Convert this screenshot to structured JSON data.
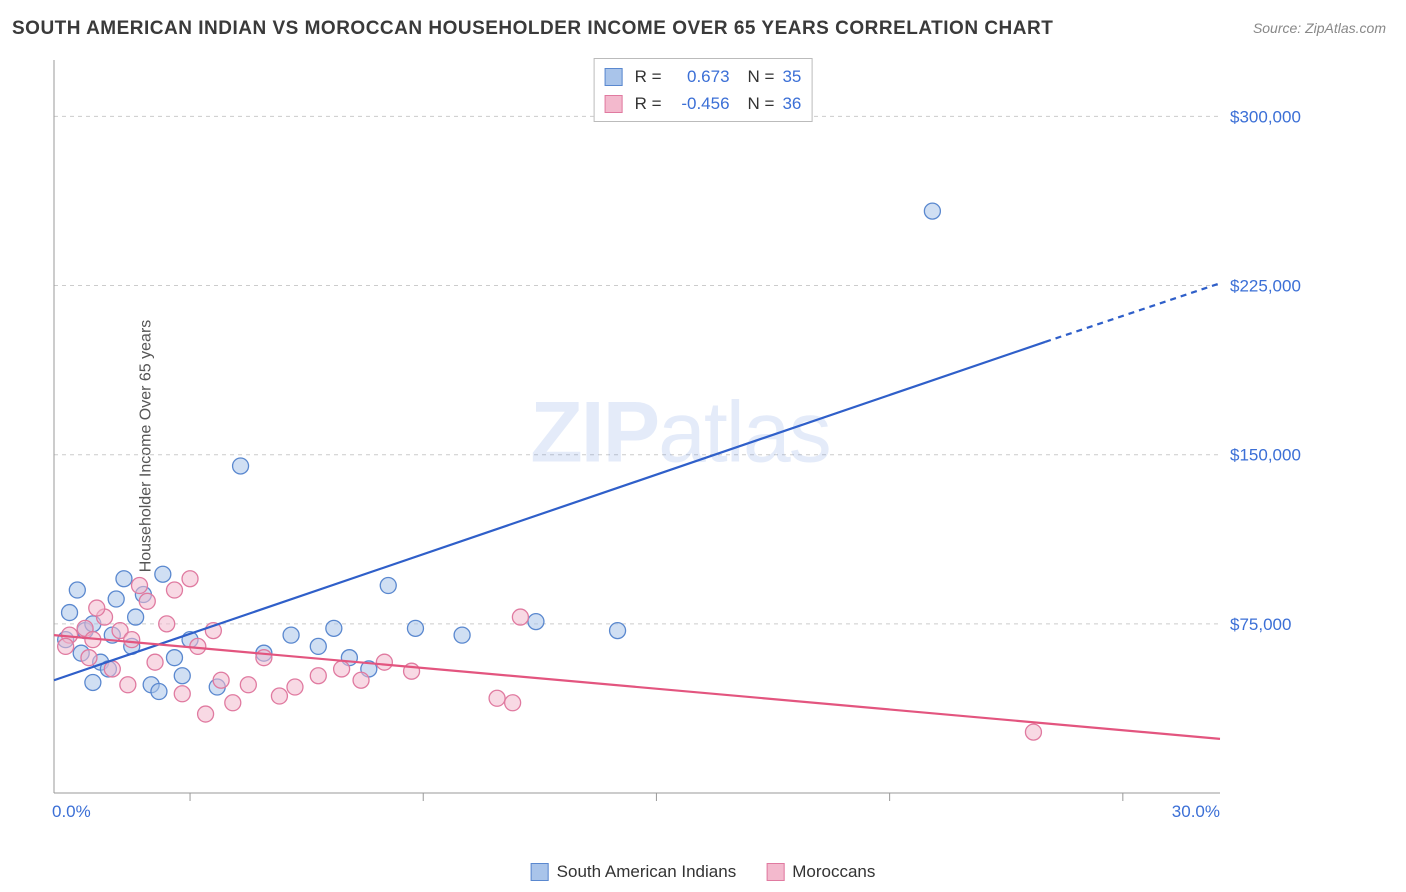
{
  "title": "SOUTH AMERICAN INDIAN VS MOROCCAN HOUSEHOLDER INCOME OVER 65 YEARS CORRELATION CHART",
  "source_label": "Source: ",
  "source_name": "ZipAtlas.com",
  "ylabel": "Householder Income Over 65 years",
  "watermark_bold": "ZIP",
  "watermark_rest": "atlas",
  "chart": {
    "type": "scatter+regression",
    "xlim": [
      0,
      30
    ],
    "ylim": [
      0,
      325000
    ],
    "x_unit": "%",
    "y_unit": "$",
    "x_start_label": "0.0%",
    "x_end_label": "30.0%",
    "y_ticks": [
      75000,
      150000,
      225000,
      300000
    ],
    "y_tick_labels": [
      "$75,000",
      "$150,000",
      "$225,000",
      "$300,000"
    ],
    "x_tick_positions": [
      3.5,
      9.5,
      15.5,
      21.5,
      27.5
    ],
    "background_color": "#ffffff",
    "grid_color": "#cccccc",
    "axis_color": "#999999",
    "tick_label_color": "#3b6fd6",
    "series": [
      {
        "name": "South American Indians",
        "marker_color_fill": "#a9c4ea",
        "marker_color_stroke": "#5a88cf",
        "marker_fill_opacity": 0.55,
        "marker_radius": 8,
        "line_color": "#2f5fc9",
        "line_width": 2.2,
        "correlation_R": 0.673,
        "correlation_R_label": "0.673",
        "N": 35,
        "regression": {
          "x1": 0,
          "y1": 50000,
          "x2": 25.5,
          "y2": 200000,
          "dash_x2": 30,
          "dash_y2": 226000
        },
        "points": [
          [
            0.3,
            68000
          ],
          [
            0.8,
            72000
          ],
          [
            0.4,
            80000
          ],
          [
            1.2,
            58000
          ],
          [
            0.7,
            62000
          ],
          [
            1.0,
            75000
          ],
          [
            1.5,
            70000
          ],
          [
            1.0,
            49000
          ],
          [
            1.6,
            86000
          ],
          [
            1.8,
            95000
          ],
          [
            2.1,
            78000
          ],
          [
            2.0,
            65000
          ],
          [
            1.4,
            55000
          ],
          [
            2.3,
            88000
          ],
          [
            2.5,
            48000
          ],
          [
            2.7,
            45000
          ],
          [
            2.8,
            97000
          ],
          [
            3.1,
            60000
          ],
          [
            3.3,
            52000
          ],
          [
            3.5,
            68000
          ],
          [
            4.2,
            47000
          ],
          [
            4.8,
            145000
          ],
          [
            5.4,
            62000
          ],
          [
            6.1,
            70000
          ],
          [
            6.8,
            65000
          ],
          [
            7.2,
            73000
          ],
          [
            7.6,
            60000
          ],
          [
            8.1,
            55000
          ],
          [
            8.6,
            92000
          ],
          [
            9.3,
            73000
          ],
          [
            10.5,
            70000
          ],
          [
            12.4,
            76000
          ],
          [
            14.5,
            72000
          ],
          [
            22.6,
            258000
          ],
          [
            0.6,
            90000
          ]
        ]
      },
      {
        "name": "Moroccans",
        "marker_color_fill": "#f3b9cd",
        "marker_color_stroke": "#e07aa0",
        "marker_fill_opacity": 0.55,
        "marker_radius": 8,
        "line_color": "#e3557f",
        "line_width": 2.2,
        "correlation_R": -0.456,
        "correlation_R_label": "-0.456",
        "N": 36,
        "regression": {
          "x1": 0,
          "y1": 70000,
          "x2": 30,
          "y2": 24000
        },
        "points": [
          [
            0.4,
            70000
          ],
          [
            0.3,
            65000
          ],
          [
            0.8,
            73000
          ],
          [
            1.0,
            68000
          ],
          [
            0.9,
            60000
          ],
          [
            1.3,
            78000
          ],
          [
            1.5,
            55000
          ],
          [
            1.7,
            72000
          ],
          [
            1.9,
            48000
          ],
          [
            2.0,
            68000
          ],
          [
            2.4,
            85000
          ],
          [
            2.6,
            58000
          ],
          [
            2.9,
            75000
          ],
          [
            3.1,
            90000
          ],
          [
            3.3,
            44000
          ],
          [
            3.5,
            95000
          ],
          [
            3.7,
            65000
          ],
          [
            3.9,
            35000
          ],
          [
            4.1,
            72000
          ],
          [
            4.3,
            50000
          ],
          [
            4.6,
            40000
          ],
          [
            5.0,
            48000
          ],
          [
            5.4,
            60000
          ],
          [
            5.8,
            43000
          ],
          [
            6.2,
            47000
          ],
          [
            6.8,
            52000
          ],
          [
            7.4,
            55000
          ],
          [
            7.9,
            50000
          ],
          [
            8.5,
            58000
          ],
          [
            9.2,
            54000
          ],
          [
            11.4,
            42000
          ],
          [
            12.0,
            78000
          ],
          [
            11.8,
            40000
          ],
          [
            25.2,
            27000
          ],
          [
            1.1,
            82000
          ],
          [
            2.2,
            92000
          ]
        ]
      }
    ],
    "legend_top": {
      "R_label": "R =",
      "N_label": "N ="
    },
    "legend_bottom": {
      "items": [
        "South American Indians",
        "Moroccans"
      ]
    }
  }
}
